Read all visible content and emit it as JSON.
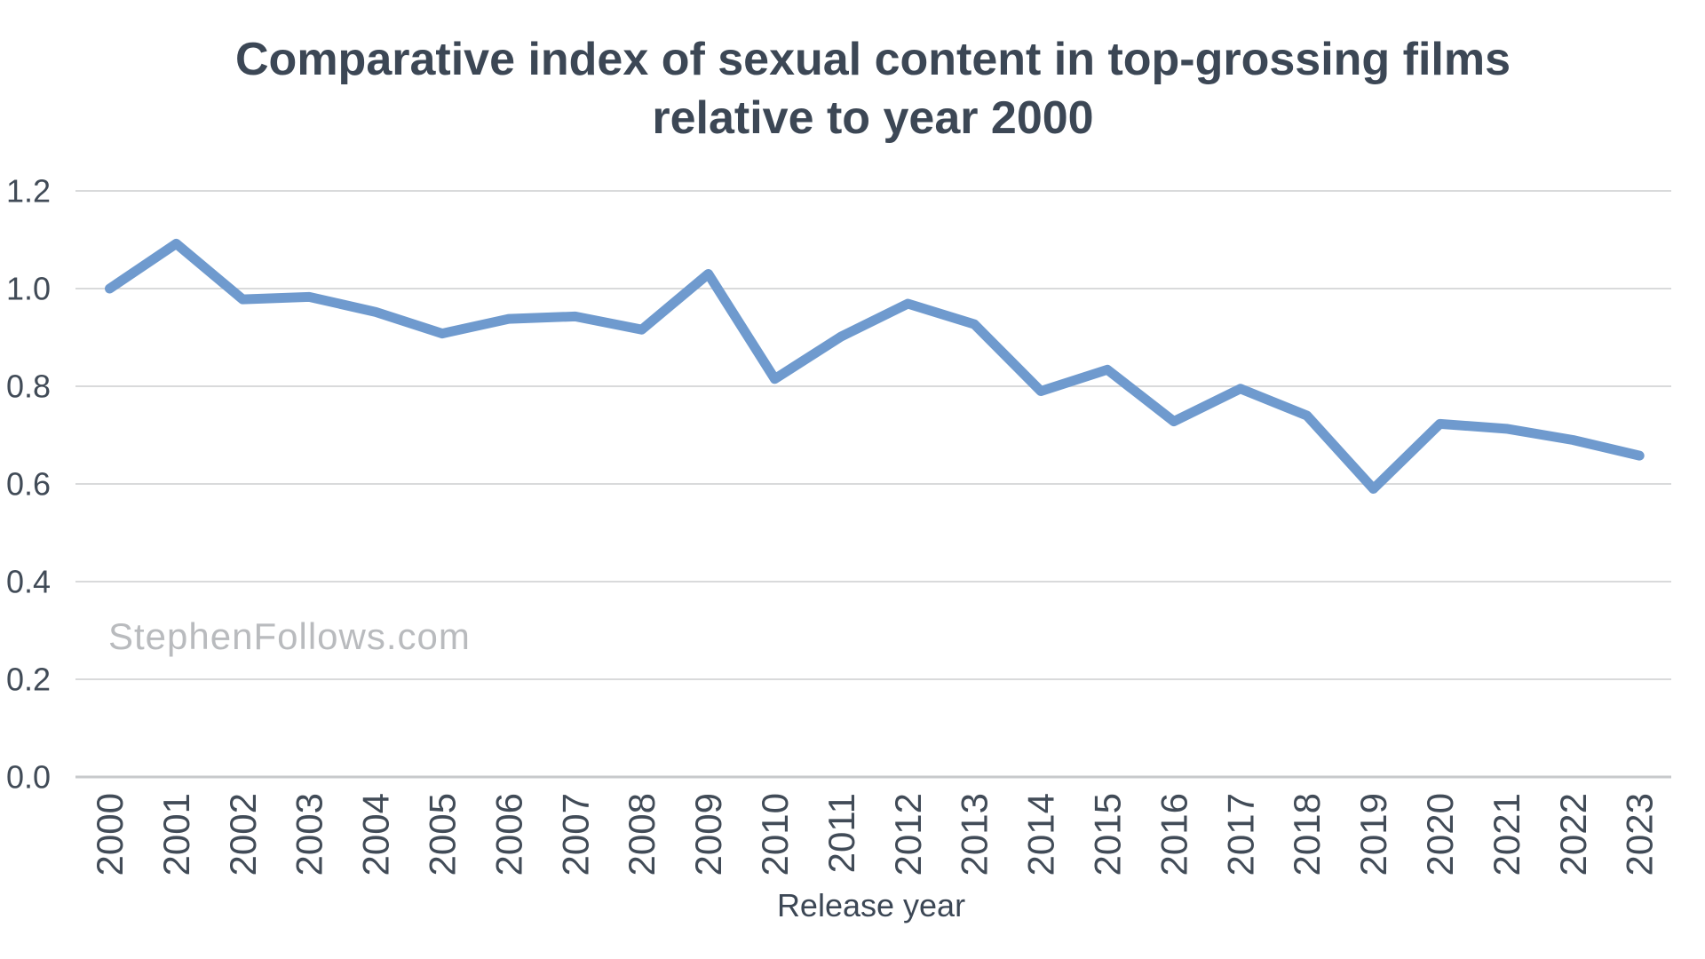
{
  "header": {
    "title_lines": [
      "Comparative index of sexual content in top-grossing films",
      "relative to year 2000"
    ]
  },
  "watermark": "StephenFollows.com",
  "chart_data": {
    "type": "line",
    "title": "Comparative index of sexual content in top-grossing films relative to year 2000",
    "xlabel": "Release year",
    "ylabel": "",
    "categories": [
      "2000",
      "2001",
      "2002",
      "2003",
      "2004",
      "2005",
      "2006",
      "2007",
      "2008",
      "2009",
      "2010",
      "2011",
      "2012",
      "2013",
      "2014",
      "2015",
      "2016",
      "2017",
      "2018",
      "2019",
      "2020",
      "2021",
      "2022",
      "2023"
    ],
    "values": [
      1.0,
      1.092,
      0.978,
      0.983,
      0.952,
      0.908,
      0.938,
      0.943,
      0.916,
      1.03,
      0.815,
      0.902,
      0.969,
      0.927,
      0.79,
      0.834,
      0.728,
      0.795,
      0.74,
      0.59,
      0.723,
      0.713,
      0.69,
      0.658
    ],
    "ylim": [
      0.0,
      1.2
    ],
    "ytick_labels": [
      "0.0",
      "0.2",
      "0.4",
      "0.6",
      "0.8",
      "1.0",
      "1.2"
    ],
    "grid": true,
    "legend": false,
    "line_color": "#6f9ace",
    "colors": {
      "gridline": "#d9dadb",
      "axis_line": "#c7c9cb",
      "title": "#3c4755",
      "tick": "#414b57",
      "watermark": "#b9bbbe"
    }
  }
}
